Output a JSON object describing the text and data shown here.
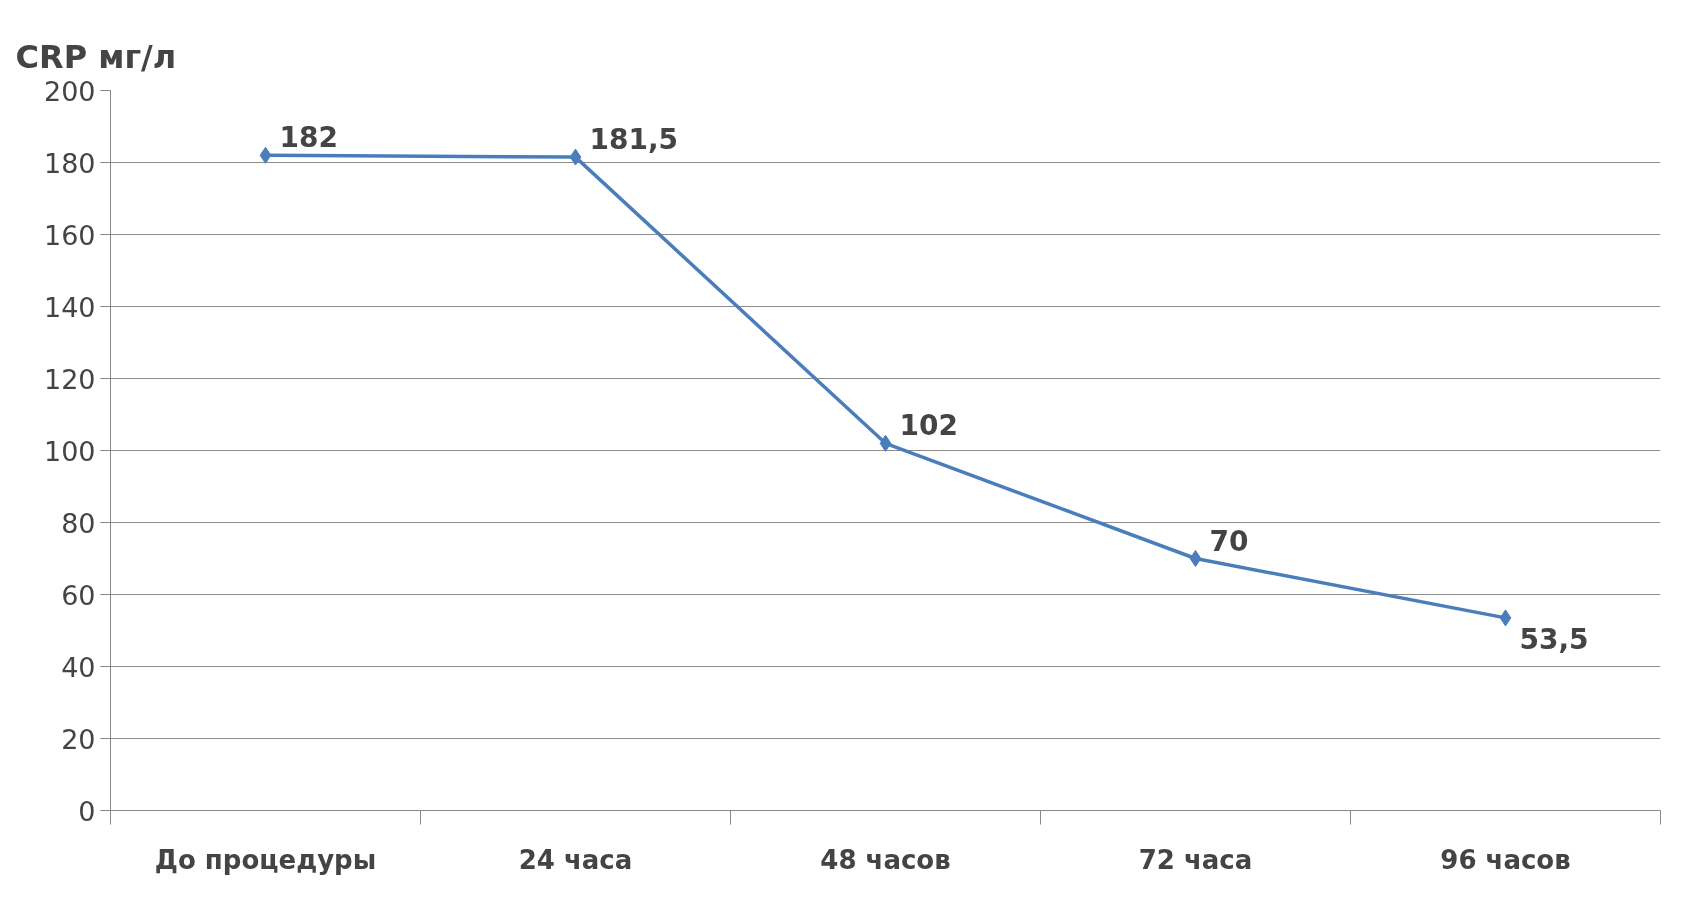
{
  "chart_data": {
    "type": "line",
    "ylabel": "CRP мг/л",
    "categories": [
      "До процедуры",
      "24 часа",
      "48 часов",
      "72 часа",
      "96 часов"
    ],
    "series": [
      {
        "color": "#4a7ebb",
        "values": [
          182,
          181.5,
          102,
          70,
          53.5
        ],
        "value_labels": [
          "182",
          "181,5",
          "102",
          "70",
          "53,5"
        ]
      }
    ],
    "ylim": [
      0,
      200
    ],
    "yticks": [
      0,
      20,
      40,
      60,
      80,
      100,
      120,
      140,
      160,
      180,
      200
    ],
    "grid": "y",
    "marker": "diamond",
    "line_style": "solid"
  }
}
